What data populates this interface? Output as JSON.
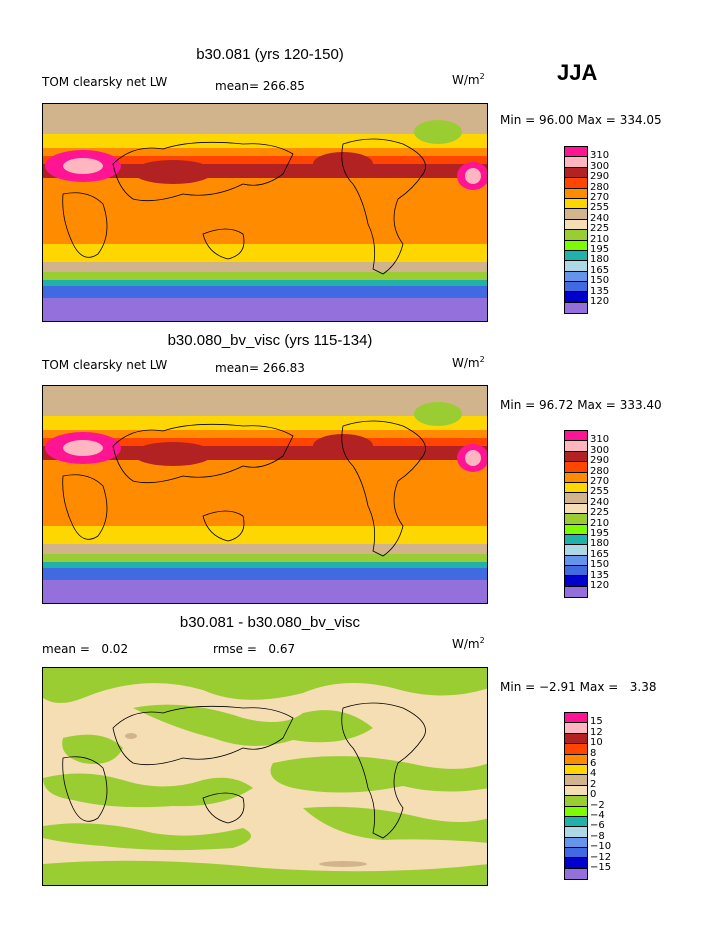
{
  "season": "JJA",
  "panels": [
    {
      "title": "b30.081 (yrs 120-150)",
      "variable": "TOM clearsky net LW",
      "stat1_label": "mean=",
      "stat1_value": "266.85",
      "stat2_label": "",
      "stat2_value": "",
      "units": "W/m",
      "units_exp": "2",
      "min_label": "Min =",
      "min_value": "96.00",
      "max_label": "Max =",
      "max_value": "334.05",
      "levels": [
        "310",
        "300",
        "290",
        "280",
        "270",
        "255",
        "240",
        "225",
        "210",
        "195",
        "180",
        "165",
        "150",
        "135",
        "120"
      ],
      "colors": [
        "#ff1493",
        "#ffb6c1",
        "#b22222",
        "#ff4500",
        "#ff8c00",
        "#ffd700",
        "#d2b48c",
        "#f5deb3",
        "#9acd32",
        "#7cfc00",
        "#20b2aa",
        "#add8e6",
        "#6495ed",
        "#4169e1",
        "#0000cd",
        "#9370db"
      ]
    },
    {
      "title": "b30.080_bv_visc (yrs 115-134)",
      "variable": "TOM clearsky net LW",
      "stat1_label": "mean=",
      "stat1_value": "266.83",
      "stat2_label": "",
      "stat2_value": "",
      "units": "W/m",
      "units_exp": "2",
      "min_label": "Min =",
      "min_value": "96.72",
      "max_label": "Max =",
      "max_value": "333.40",
      "levels": [
        "310",
        "300",
        "290",
        "280",
        "270",
        "255",
        "240",
        "225",
        "210",
        "195",
        "180",
        "165",
        "150",
        "135",
        "120"
      ],
      "colors": [
        "#ff1493",
        "#ffb6c1",
        "#b22222",
        "#ff4500",
        "#ff8c00",
        "#ffd700",
        "#d2b48c",
        "#f5deb3",
        "#9acd32",
        "#7cfc00",
        "#20b2aa",
        "#add8e6",
        "#6495ed",
        "#4169e1",
        "#0000cd",
        "#9370db"
      ]
    },
    {
      "title": "b30.081 - b30.080_bv_visc",
      "variable": "",
      "stat1_label": "mean =",
      "stat1_value": "0.02",
      "stat2_label": "rmse =",
      "stat2_value": "0.67",
      "units": "W/m",
      "units_exp": "2",
      "min_label": "Min =",
      "min_value": "−2.91",
      "max_label": "Max =",
      "max_value": "3.38",
      "levels": [
        "15",
        "12",
        "10",
        "8",
        "6",
        "4",
        "2",
        "0",
        "−2",
        "−4",
        "−6",
        "−8",
        "−10",
        "−12",
        "−15"
      ],
      "colors": [
        "#ff1493",
        "#ffb6c1",
        "#b22222",
        "#ff4500",
        "#ff8c00",
        "#ffd700",
        "#d2b48c",
        "#f5deb3",
        "#9acd32",
        "#7cfc00",
        "#20b2aa",
        "#add8e6",
        "#6495ed",
        "#4169e1",
        "#0000cd",
        "#9370db"
      ]
    }
  ]
}
